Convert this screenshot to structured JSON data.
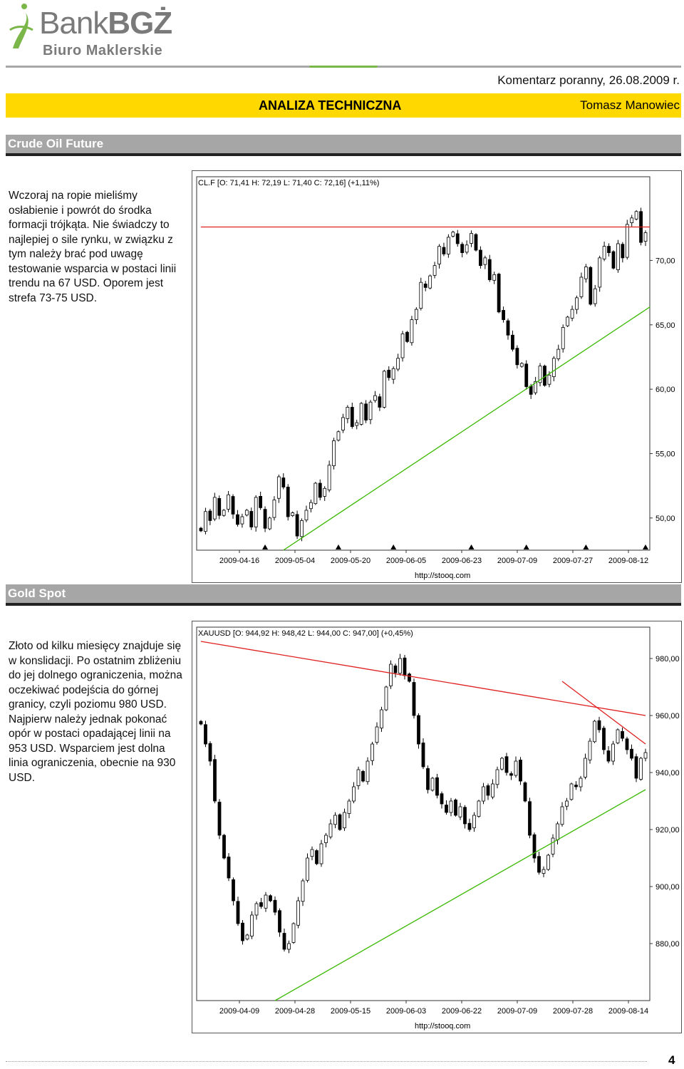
{
  "header": {
    "logo_main": "Bank",
    "logo_bold": "BGŻ",
    "logo_sub": "Biuro Maklerskie",
    "date_line": "Komentarz poranny, 26.08.2009 r.",
    "section_title": "ANALIZA TECHNICZNA",
    "author": "Tomasz Manowiec",
    "accent_color": "#ffd800"
  },
  "sections": [
    {
      "title": "Crude Oil Future",
      "text": "Wczoraj na ropie mieliśmy osłabienie i powrót do środka formacji trójkąta. Nie świadczy to najlepiej o sile rynku, w związku z tym należy brać pod uwagę testowanie wsparcia w postaci linii trendu na 67 USD. Oporem jest strefa 73-75 USD."
    },
    {
      "title": "Gold Spot",
      "text": "Złoto od kilku miesięcy znajduje się w konslidacji. Po ostatnim zbliżeniu do jej dolnego ograniczenia, można oczekiwać podejścia do górnej granicy, czyli poziomu 980 USD. Najpierw należy jednak pokonać opór w postaci opadającej linii na 953 USD. Wsparciem jest dolna linia ograniczenia, obecnie na 930 USD."
    }
  ],
  "chart_data": [
    {
      "type": "candlestick",
      "legend": "CL.F [O: 71,41  H: 72,19  L: 71,40  C: 72,16] (+1,11%)",
      "source": "http://stooq.com",
      "x_labels": [
        "2009-04-16",
        "2009-05-04",
        "2009-05-20",
        "2009-06-05",
        "2009-06-23",
        "2009-07-09",
        "2009-07-27",
        "2009-08-12"
      ],
      "y_ticks": [
        50,
        55,
        60,
        65,
        70
      ],
      "y_tick_labels": [
        "50,00",
        "55,00",
        "60,00",
        "65,00",
        "70,00"
      ],
      "ylim": [
        47.5,
        76.5
      ],
      "n_bars": 98,
      "closes": [
        49.0,
        50.5,
        49.8,
        51.6,
        50.2,
        50.6,
        51.8,
        50.3,
        49.5,
        50.1,
        50.6,
        49.3,
        51.6,
        50.8,
        49.2,
        50.0,
        51.4,
        53.2,
        52.4,
        50.1,
        50.4,
        48.6,
        49.8,
        50.6,
        51.2,
        52.7,
        51.6,
        52.3,
        54.1,
        56.0,
        56.7,
        57.8,
        58.6,
        57.1,
        57.4,
        58.9,
        57.6,
        59.0,
        59.5,
        58.6,
        61.4,
        60.9,
        61.6,
        62.4,
        64.3,
        63.7,
        65.4,
        66.2,
        68.3,
        67.9,
        68.8,
        69.6,
        71.1,
        70.5,
        71.8,
        72.2,
        71.3,
        70.6,
        71.2,
        72.1,
        70.8,
        69.6,
        70.2,
        68.5,
        68.9,
        66.0,
        65.4,
        64.2,
        63.1,
        61.9,
        62.0,
        60.2,
        59.6,
        60.6,
        61.8,
        60.3,
        61.1,
        62.4,
        63.1,
        64.8,
        65.6,
        66.2,
        67.1,
        68.7,
        69.5,
        66.6,
        67.8,
        70.2,
        71.1,
        70.6,
        69.4,
        71.3,
        70.2,
        72.8,
        73.3,
        73.8,
        71.4,
        72.16
      ],
      "series": [
        {
          "name": "resistance",
          "color": "#e02020",
          "from": [
            0,
            72.6
          ],
          "to": [
            98,
            72.6
          ]
        },
        {
          "name": "trend",
          "color": "#39b800",
          "from": [
            18,
            47.5
          ],
          "to": [
            98,
            66.4
          ]
        }
      ],
      "arrow_positions": [
        14,
        30,
        42,
        59,
        71,
        84,
        97
      ]
    },
    {
      "type": "candlestick",
      "legend": "XAUUSD [O: 944,92  H: 948,42  L: 944,00  C: 947,00] (+0,45%)",
      "source": "http://stooq.com",
      "x_labels": [
        "2009-04-09",
        "2009-04-28",
        "2009-05-15",
        "2009-06-03",
        "2009-06-22",
        "2009-07-09",
        "2009-07-28",
        "2009-08-14"
      ],
      "y_ticks": [
        880,
        900,
        920,
        940,
        960,
        980
      ],
      "y_tick_labels": [
        "880,00",
        "900,00",
        "920,00",
        "940,00",
        "960,00",
        "980,00"
      ],
      "ylim": [
        860,
        991
      ],
      "n_bars": 97,
      "closes": [
        957,
        950,
        944,
        930,
        918,
        910,
        903,
        895,
        887,
        881,
        883,
        890,
        894,
        893,
        897,
        895,
        891,
        884,
        878,
        880,
        887,
        895,
        902,
        910,
        913,
        908,
        915,
        918,
        922,
        925,
        920,
        926,
        930,
        935,
        941,
        937,
        944,
        950,
        956,
        962,
        970,
        978,
        975,
        980,
        974,
        972,
        960,
        950,
        942,
        934,
        938,
        932,
        929,
        926,
        930,
        925,
        928,
        922,
        920,
        925,
        930,
        935,
        932,
        936,
        941,
        945,
        940,
        939,
        944,
        937,
        930,
        918,
        910,
        905,
        906,
        911,
        917,
        922,
        928,
        930,
        936,
        935,
        938,
        945,
        951,
        958,
        955,
        948,
        944,
        950,
        955,
        952,
        948,
        945,
        938,
        945,
        947
      ],
      "series": [
        {
          "name": "upper-resistance",
          "color": "#e02020",
          "from": [
            0,
            986
          ],
          "to": [
            96,
            960
          ]
        },
        {
          "name": "short-resistance",
          "color": "#e02020",
          "from": [
            78,
            972
          ],
          "to": [
            96,
            950
          ]
        },
        {
          "name": "support",
          "color": "#39b800",
          "from": [
            16,
            860
          ],
          "to": [
            96,
            934
          ]
        }
      ]
    }
  ],
  "footer": {
    "page_number": "4"
  }
}
